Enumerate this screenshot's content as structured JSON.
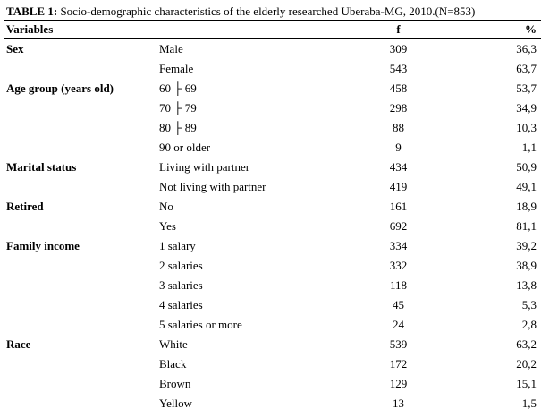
{
  "caption": {
    "label": "TABLE 1:",
    "text": " Socio-demographic characteristics of the elderly researched Uberaba-MG, 2010.(N=853)"
  },
  "table": {
    "headers": {
      "variables": "Variables",
      "category": "",
      "f": "f",
      "percent": "%"
    },
    "rows": [
      {
        "variable": "Sex",
        "category": "Male",
        "f": "309",
        "percent": "36,3"
      },
      {
        "variable": "",
        "category": "Female",
        "f": "543",
        "percent": "63,7"
      },
      {
        "variable": "Age group (years old)",
        "category": "60 ├ 69",
        "f": "458",
        "percent": "53,7"
      },
      {
        "variable": "",
        "category": "70 ├ 79",
        "f": "298",
        "percent": "34,9"
      },
      {
        "variable": "",
        "category": "80 ├ 89",
        "f": "88",
        "percent": "10,3"
      },
      {
        "variable": "",
        "category": "90 or older",
        "f": "9",
        "percent": "1,1"
      },
      {
        "variable": "Marital status",
        "category": "Living with partner",
        "f": "434",
        "percent": "50,9"
      },
      {
        "variable": "",
        "category": "Not living with partner",
        "f": "419",
        "percent": "49,1"
      },
      {
        "variable": "Retired",
        "category": "No",
        "f": "161",
        "percent": "18,9"
      },
      {
        "variable": "",
        "category": "Yes",
        "f": "692",
        "percent": "81,1"
      },
      {
        "variable": "Family income",
        "category": "1 salary",
        "f": "334",
        "percent": "39,2"
      },
      {
        "variable": "",
        "category": "2 salaries",
        "f": "332",
        "percent": "38,9"
      },
      {
        "variable": "",
        "category": "3 salaries",
        "f": "118",
        "percent": "13,8"
      },
      {
        "variable": "",
        "category": "4 salaries",
        "f": "45",
        "percent": "5,3"
      },
      {
        "variable": "",
        "category": "5 salaries or more",
        "f": "24",
        "percent": "2,8"
      },
      {
        "variable": "Race",
        "category": "White",
        "f": "539",
        "percent": "63,2"
      },
      {
        "variable": "",
        "category": "Black",
        "f": "172",
        "percent": "20,2"
      },
      {
        "variable": "",
        "category": "Brown",
        "f": "129",
        "percent": "15,1"
      },
      {
        "variable": "",
        "category": "Yellow",
        "f": "13",
        "percent": "1,5"
      }
    ]
  }
}
